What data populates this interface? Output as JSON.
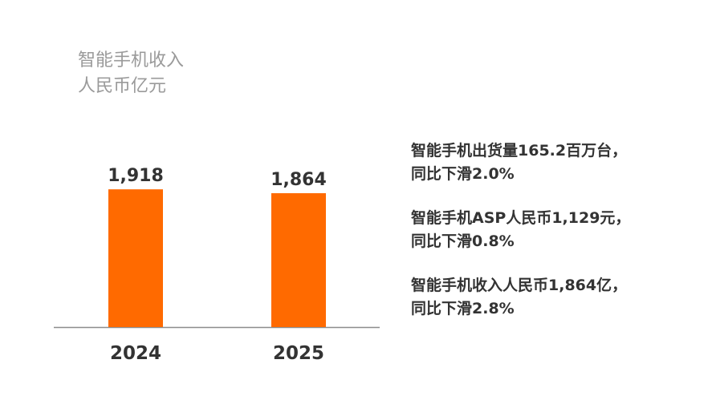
{
  "chart_data": {
    "type": "bar",
    "title": "智能手机收入",
    "subtitle": "人民币亿元",
    "categories": [
      "2024",
      "2025"
    ],
    "values": [
      1918,
      1864
    ],
    "data_labels": [
      "1,918",
      "1,864"
    ],
    "ylim": [
      0,
      2400
    ],
    "grid": false,
    "bar_color": "#ff6a00"
  },
  "stats": [
    {
      "line1": "智能手机出货量165.2百万台，",
      "line2": "同比下滑2.0%"
    },
    {
      "line1": "智能手机ASP人民币1,129元，",
      "line2": "同比下滑0.8%"
    },
    {
      "line1": "智能手机收入人民币1,864亿，",
      "line2": "同比下滑2.8%"
    }
  ]
}
